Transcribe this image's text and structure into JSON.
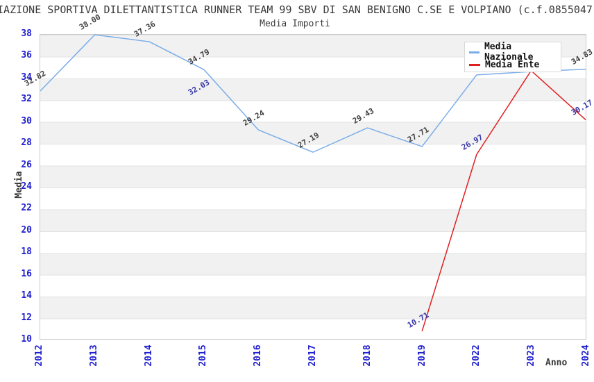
{
  "header": {
    "title": "IAZIONE SPORTIVA DILETTANTISTICA RUNNER TEAM 99 SBV DI SAN BENIGNO C.SE E VOLPIANO (c.f.0855047",
    "subtitle": "Media Importi"
  },
  "chart_data": {
    "type": "line",
    "title": "Media Importi",
    "xlabel": "Anno",
    "ylabel": "Media",
    "ylim": [
      10,
      38
    ],
    "ytick_step": 2,
    "grid": "horizontal-bands",
    "legend_position": "top-right",
    "categories": [
      "2012",
      "2013",
      "2014",
      "2015",
      "2016",
      "2017",
      "2018",
      "2019",
      "2022",
      "2023",
      "2024"
    ],
    "series": [
      {
        "name": "Media Nazionale",
        "color": "#7aade8",
        "label_color": "#404040",
        "points": [
          {
            "x": "2012",
            "y": 32.82,
            "label": "32.82"
          },
          {
            "x": "2013",
            "y": 38.0,
            "label": "38.00"
          },
          {
            "x": "2014",
            "y": 37.36,
            "label": "37.36"
          },
          {
            "x": "2015",
            "y": 34.79,
            "label": "34.79"
          },
          {
            "x": "2016",
            "y": 29.24,
            "label": "29.24"
          },
          {
            "x": "2017",
            "y": 27.19,
            "label": "27.19"
          },
          {
            "x": "2018",
            "y": 29.43,
            "label": "29.43"
          },
          {
            "x": "2019",
            "y": 27.71,
            "label": "27.71"
          },
          {
            "x": "2022",
            "y": 34.3,
            "label": null
          },
          {
            "x": "2023",
            "y": 34.6,
            "label": null
          },
          {
            "x": "2024",
            "y": 34.83,
            "label": "34.83"
          }
        ]
      },
      {
        "name": "Media Ente",
        "color": "#e01f1f",
        "label_color": "#3636a8",
        "points": [
          {
            "x": "2015",
            "y": 32.03,
            "label": "32.03"
          },
          {
            "x": "2019",
            "y": 10.71,
            "label": "10.71"
          },
          {
            "x": "2022",
            "y": 26.97,
            "label": "26.97"
          },
          {
            "x": "2023",
            "y": 34.7,
            "label": null
          },
          {
            "x": "2024",
            "y": 30.17,
            "label": "30.17"
          }
        ]
      }
    ]
  },
  "colors": {
    "axis_tick_label": "#2020cf",
    "band_gray": "#f1f1f1",
    "grid_line": "#e2e2e2",
    "plot_border": "#c9c9c9",
    "text": "#3a3a3a"
  }
}
